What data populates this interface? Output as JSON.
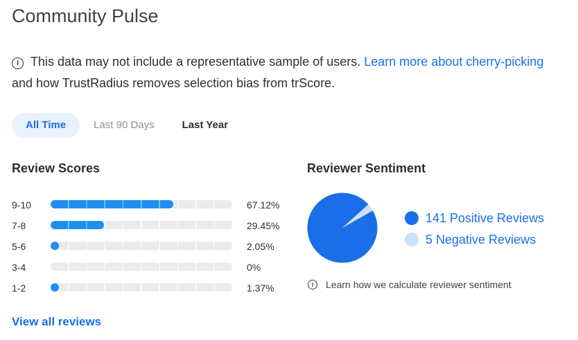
{
  "header": {
    "title": "Community Pulse"
  },
  "notice": {
    "icon": "info-icon",
    "text": "This data may not include a representative sample of users.",
    "link_text": "Learn more about cherry-picking",
    "text_after": "and how TrustRadius removes selection bias from trScore."
  },
  "tabs": [
    {
      "label": "All Time",
      "active": true
    },
    {
      "label": "Last 90 Days",
      "active": false
    },
    {
      "label": "Last Year",
      "active": false
    }
  ],
  "review_scores": {
    "heading": "Review Scores",
    "rows": [
      {
        "label": "9-10",
        "percent_text": "67.12%",
        "percent": 67.12
      },
      {
        "label": "7-8",
        "percent_text": "29.45%",
        "percent": 29.45
      },
      {
        "label": "5-6",
        "percent_text": "2.05%",
        "percent": 2.05
      },
      {
        "label": "3-4",
        "percent_text": "0%",
        "percent": 0
      },
      {
        "label": "1-2",
        "percent_text": "1.37%",
        "percent": 1.37
      }
    ]
  },
  "sentiment": {
    "heading": "Reviewer Sentiment",
    "positive": {
      "label": "141 Positive Reviews",
      "count": 141,
      "color": "#1a6fe8"
    },
    "negative": {
      "label": "5 Negative Reviews",
      "count": 5,
      "color": "#c9e1fb"
    },
    "calc_link": "Learn how we calculate reviewer sentiment",
    "calc_icon": "info-icon"
  },
  "footer": {
    "view_all": "View all reviews"
  },
  "colors": {
    "accent": "#1a6fe8",
    "bar_fill": "#1e8ff0",
    "bar_track": "#e9ebee"
  }
}
